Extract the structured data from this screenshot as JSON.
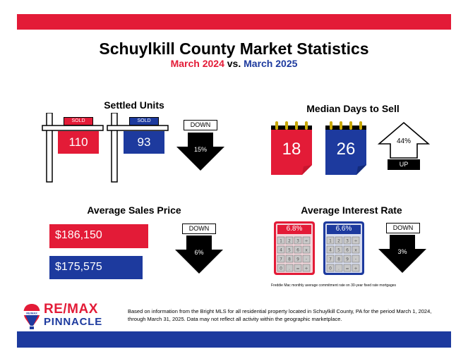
{
  "header": {
    "title": "Schuylkill County Market Statistics",
    "subtitle_a": "March 2024",
    "subtitle_vs": "vs.",
    "subtitle_b": "March 2025"
  },
  "settled_units": {
    "title": "Settled Units",
    "sold_label": "SOLD",
    "value_2024": "110",
    "value_2025": "93",
    "direction": "DOWN",
    "change": "15%"
  },
  "median_days": {
    "title": "Median Days to Sell",
    "value_2024": "18",
    "value_2025": "26",
    "change": "44%",
    "direction": "UP"
  },
  "avg_price": {
    "title": "Average Sales Price",
    "value_2024": "$186,150",
    "value_2025": "$175,575",
    "direction": "DOWN",
    "change": "6%"
  },
  "avg_rate": {
    "title": "Average Interest Rate",
    "value_2024": "6.8%",
    "value_2025": "6.6%",
    "direction": "DOWN",
    "change": "3%",
    "note": "Freddie Mac monthly average commitment rate on 30-year fixed rate mortgages",
    "keys": [
      "1",
      "2",
      "3",
      "÷",
      "4",
      "5",
      "6",
      "x",
      "7",
      "8",
      "9",
      "-",
      "0",
      ".",
      "=",
      "+"
    ]
  },
  "brand": {
    "logo_small": "RE/MAX",
    "name_line1": "RE/MAX",
    "name_line2": "PINNACLE"
  },
  "footer": {
    "disclaimer": "Based on information from the Bright MLS for all residential property located in Schuylkill County, PA for the period March 1, 2024, through March 31, 2025.  Data may not reflect all activity within the geographic marketplace."
  },
  "colors": {
    "red": "#e31b37",
    "blue": "#1d3a9e"
  }
}
